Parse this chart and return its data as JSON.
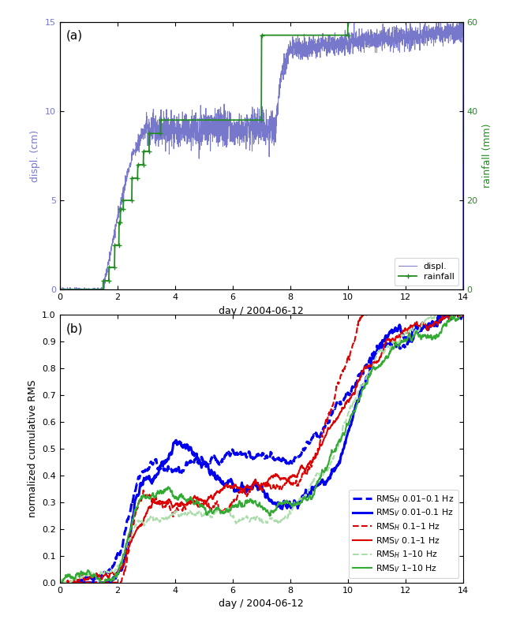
{
  "fig_width": 6.59,
  "fig_height": 7.9,
  "dpi": 100,
  "panel_a": {
    "label": "(a)",
    "xlabel": "day / 2004-06-12",
    "ylabel_left": "displ. (cm)",
    "ylabel_right": "rainfall (mm)",
    "xlim": [
      0,
      14
    ],
    "ylim_left": [
      0,
      15
    ],
    "ylim_right": [
      0,
      60
    ],
    "yticks_left": [
      0,
      5,
      10,
      15
    ],
    "yticks_right": [
      0,
      20,
      40,
      60
    ],
    "xticks": [
      0,
      2,
      4,
      6,
      8,
      10,
      12,
      14
    ],
    "displ_color": "#7777cc",
    "rainfall_color": "#228B22",
    "legend_labels": [
      "displ.",
      "rainfall"
    ]
  },
  "panel_b": {
    "label": "(b)",
    "xlabel": "day / 2004-06-12",
    "ylabel": "normalized cumulative RMS",
    "xlim": [
      0,
      14
    ],
    "ylim": [
      0,
      1
    ],
    "yticks": [
      0,
      0.1,
      0.2,
      0.3,
      0.4,
      0.5,
      0.6,
      0.7,
      0.8,
      0.9,
      1.0
    ],
    "xticks": [
      0,
      2,
      4,
      6,
      8,
      10,
      12,
      14
    ],
    "blue_color": "#0000ee",
    "red_color": "#dd0000",
    "green_dashed_color": "#aaddaa",
    "green_solid_color": "#33aa33",
    "legend_labels": [
      "RMS$_H$ 0.01–0.1 Hz",
      "RMS$_V$ 0.01–0.1 Hz",
      "RMS$_H$ 0.1–1 Hz",
      "RMS$_V$ 0.1–1 Hz",
      "RMS$_H$ 1–10 Hz",
      "RMS$_V$ 1–10 Hz"
    ]
  }
}
